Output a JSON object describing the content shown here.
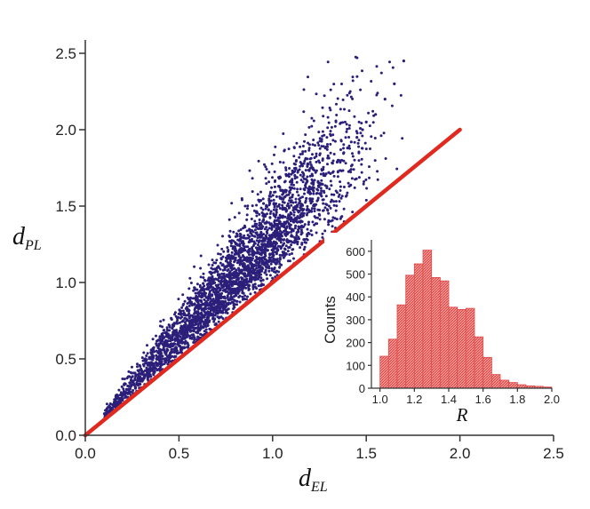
{
  "chart_data": [
    {
      "type": "scatter",
      "title": "",
      "xlabel": "d",
      "xlabel_sub": "EL",
      "ylabel": "d",
      "ylabel_sub": "PL",
      "xlim": [
        0,
        2.5
      ],
      "ylim": [
        0,
        2.5
      ],
      "xticks": [
        "0.0",
        "0.5",
        "1.0",
        "1.5",
        "2.0",
        "2.5"
      ],
      "yticks": [
        "0.0",
        "0.5",
        "1.0",
        "1.5",
        "2.0",
        "2.5"
      ],
      "grid": false,
      "point_color": "#2b1f7a",
      "reference_line": {
        "x": [
          0,
          2.0
        ],
        "y": [
          0,
          2.0
        ],
        "color": "#e02a20"
      },
      "point_cloud": {
        "approx_count": 4000,
        "x_range": [
          0.1,
          1.75
        ],
        "ratio_range": [
          1.0,
          1.9
        ],
        "note_points_shown": "ratio y/x distribution matches inset histogram"
      },
      "series": [
        {
          "x": [
            0.12,
            0.15,
            0.18,
            0.2,
            0.22,
            0.25,
            0.28,
            0.3,
            0.33,
            0.35,
            0.38,
            0.4,
            0.42,
            0.45,
            0.48,
            0.5,
            0.52,
            0.55,
            0.58,
            0.6,
            0.62,
            0.65,
            0.68,
            0.7,
            0.72,
            0.75,
            0.78,
            0.8,
            0.82,
            0.85,
            0.88,
            0.9,
            0.92,
            0.95,
            0.98,
            1.0,
            1.02,
            1.05,
            1.08,
            1.1,
            1.12,
            1.15,
            1.18,
            1.2,
            1.22,
            1.25,
            1.28,
            1.3,
            1.32,
            1.35,
            1.38,
            1.4,
            1.42,
            1.45,
            1.48,
            1.5,
            1.55,
            1.6,
            1.65,
            1.7
          ],
          "y": [
            0.15,
            0.2,
            0.22,
            0.26,
            0.3,
            0.33,
            0.36,
            0.4,
            0.42,
            0.46,
            0.5,
            0.52,
            0.56,
            0.58,
            0.62,
            0.65,
            0.68,
            0.7,
            0.75,
            0.78,
            0.8,
            0.85,
            0.88,
            0.9,
            0.95,
            1.0,
            1.0,
            1.05,
            1.08,
            1.12,
            1.15,
            1.2,
            1.2,
            1.25,
            1.28,
            1.3,
            1.35,
            1.38,
            1.42,
            1.45,
            1.48,
            1.5,
            1.55,
            1.58,
            1.62,
            1.65,
            1.7,
            1.72,
            1.78,
            1.8,
            1.85,
            1.88,
            1.92,
            1.95,
            2.0,
            2.05,
            2.1,
            2.2,
            2.3,
            2.45
          ]
        }
      ]
    },
    {
      "type": "bar",
      "title": "",
      "xlabel": "R",
      "ylabel": "Counts",
      "xlim": [
        0.95,
        2.0
      ],
      "ylim": [
        0,
        650
      ],
      "xticks": [
        "1.0",
        "1.2",
        "1.4",
        "1.6",
        "1.8",
        "2.0"
      ],
      "yticks": [
        "0",
        "100",
        "200",
        "300",
        "400",
        "500",
        "600"
      ],
      "bar_color": "#e24a4a",
      "bin_width": 0.05,
      "categories": [
        "1.00",
        "1.05",
        "1.10",
        "1.15",
        "1.20",
        "1.25",
        "1.30",
        "1.35",
        "1.40",
        "1.45",
        "1.50",
        "1.55",
        "1.60",
        "1.65",
        "1.70",
        "1.75",
        "1.80",
        "1.85",
        "1.90",
        "1.95"
      ],
      "values": [
        140,
        215,
        365,
        495,
        545,
        605,
        485,
        470,
        355,
        345,
        350,
        225,
        135,
        60,
        35,
        25,
        15,
        10,
        8,
        5
      ]
    }
  ]
}
